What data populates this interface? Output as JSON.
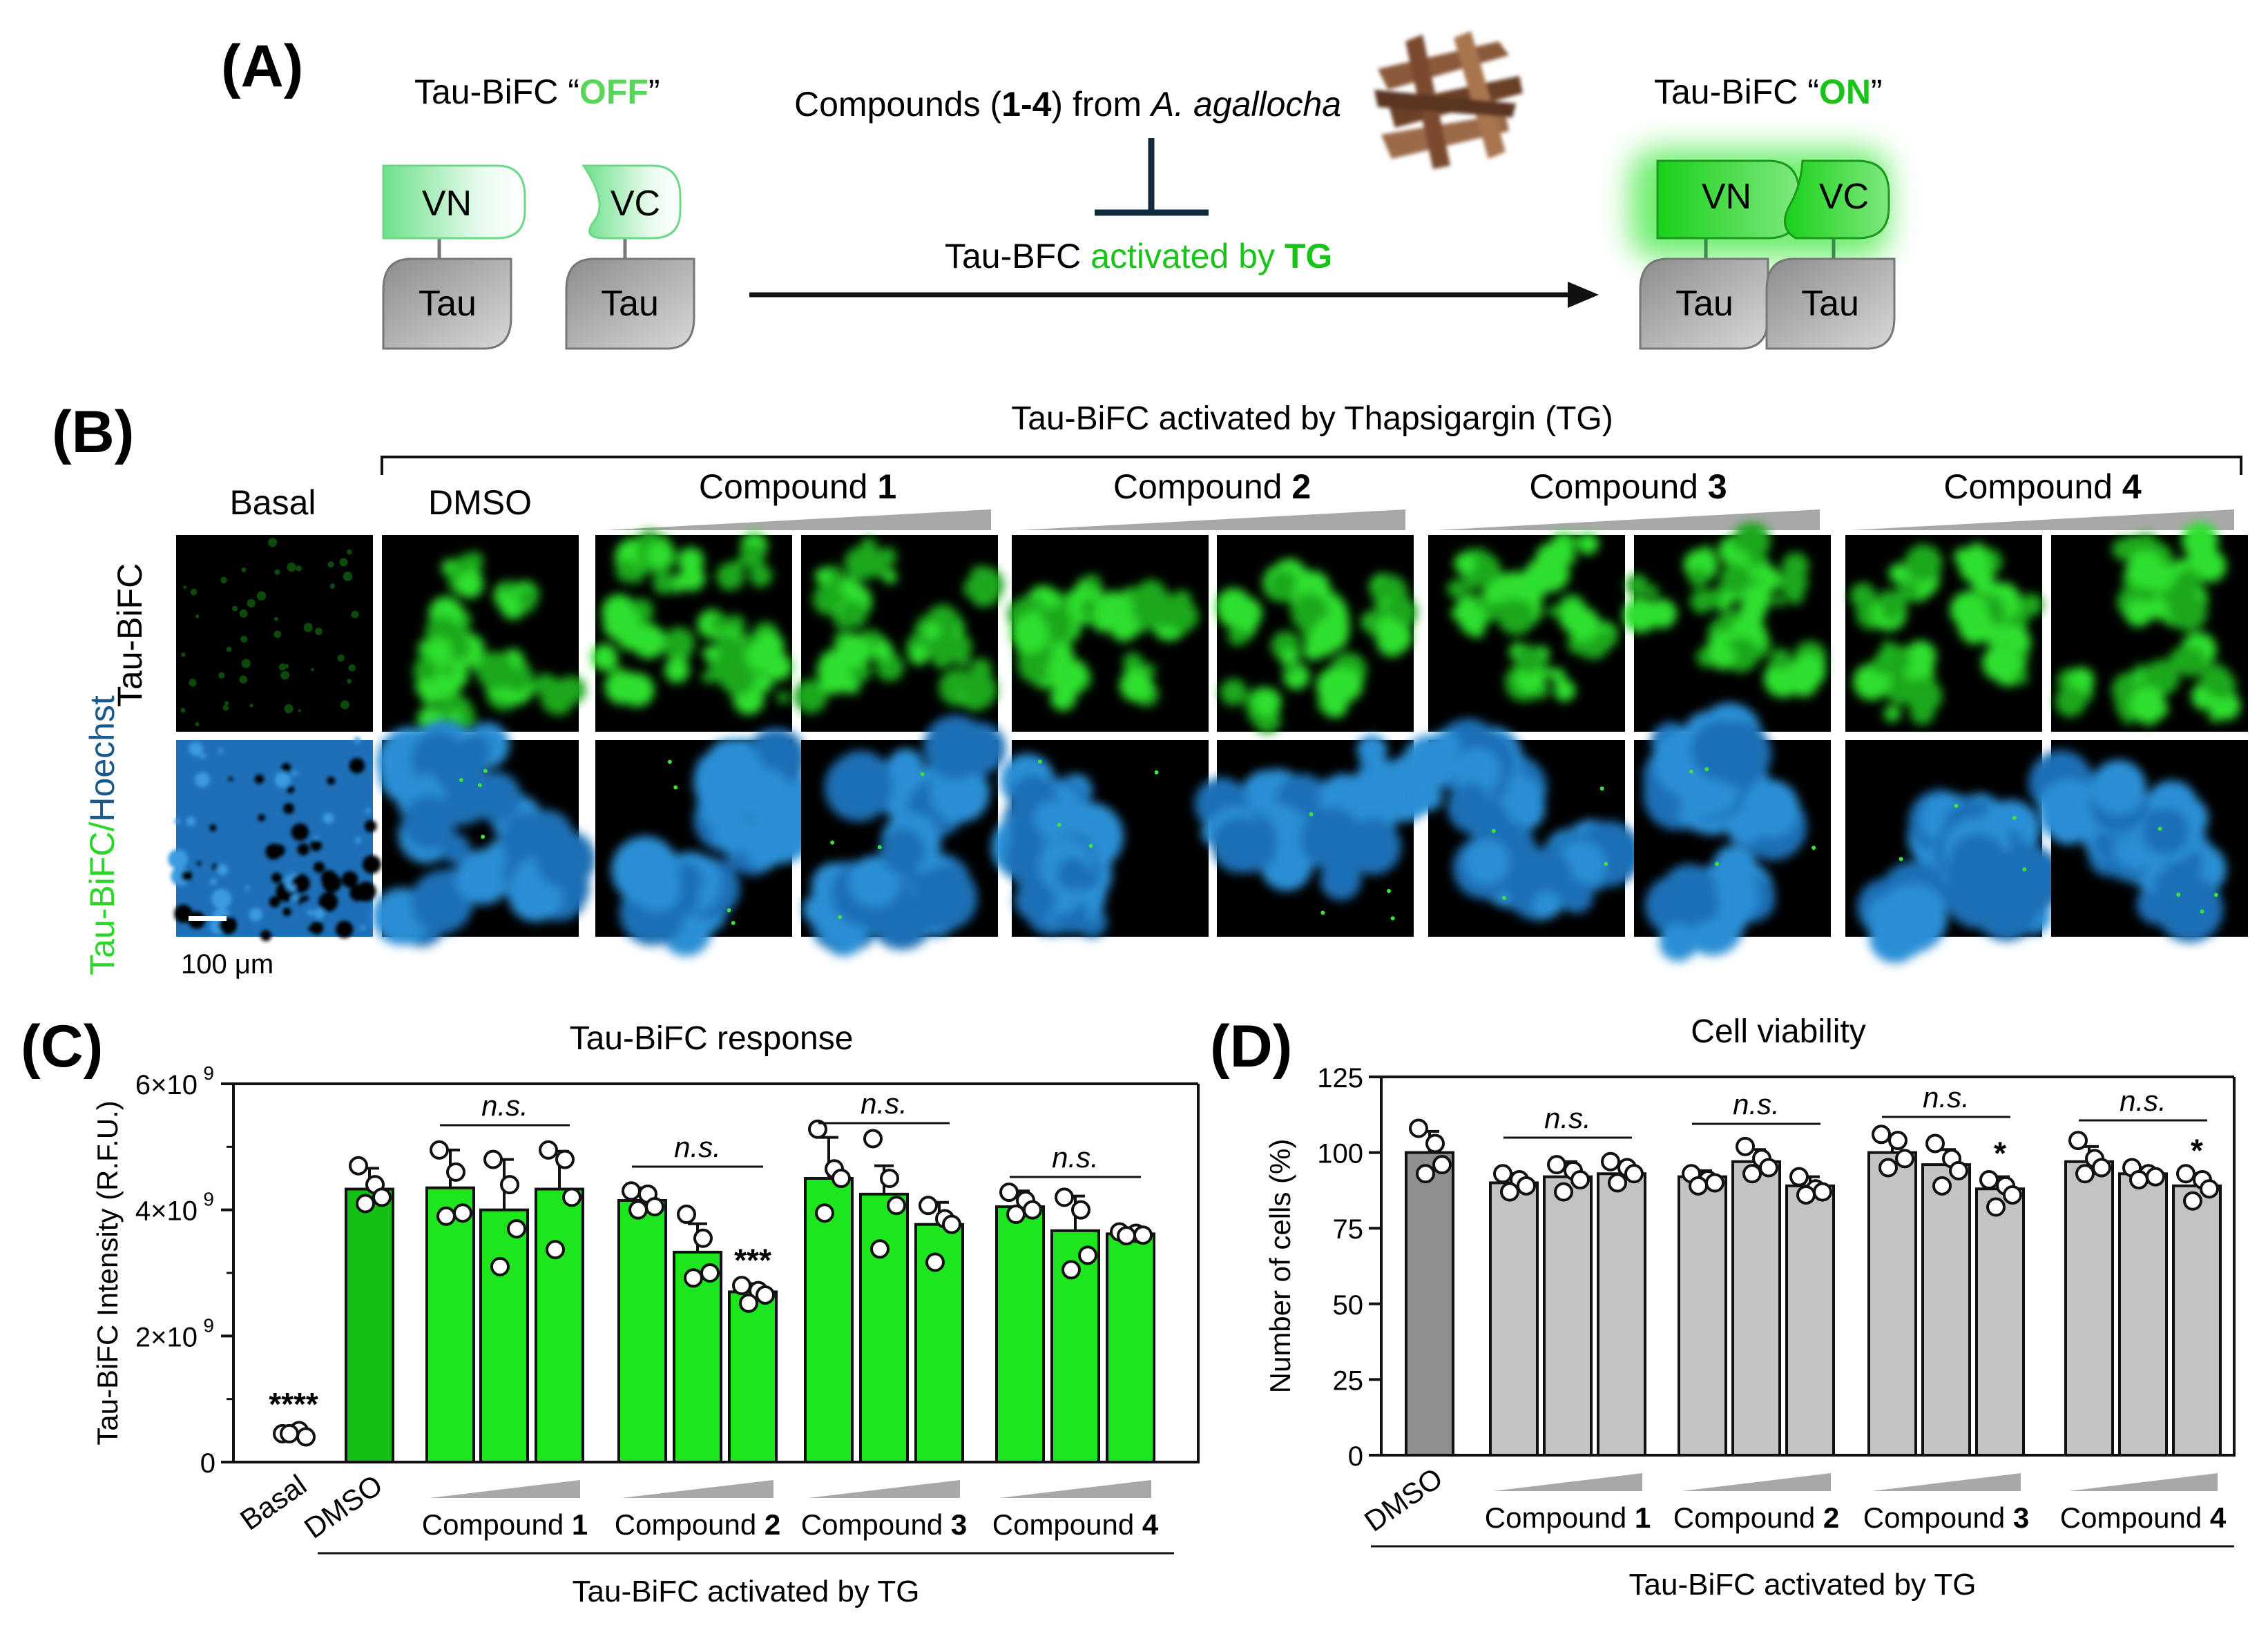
{
  "panel_a": {
    "label": "(A)",
    "off_title_prefix": "Tau-BiFC “",
    "off_word": "OFF",
    "off_title_suffix": "”",
    "on_title_prefix": "Tau-BiFC “",
    "on_word": "ON",
    "on_title_suffix": "”",
    "vn": "VN",
    "vc": "VC",
    "tau": "Tau",
    "compounds_prefix": "Compounds (",
    "compounds_bold": "1-4",
    "compounds_middle": ") from ",
    "compounds_species": "A. agallocha",
    "bfc_prefix": "Tau-BFC ",
    "bfc_green": "activated by ",
    "bfc_tg": "TG",
    "colors": {
      "green_text": "#5bd45b",
      "green_on": "#19c319",
      "arrow": "#111111",
      "inhibit": "#0f2a3a"
    }
  },
  "panel_b": {
    "label": "(B)",
    "header": "Tau-BiFC activated by Thapsigargin (TG)",
    "basal": "Basal",
    "dmso": "DMSO",
    "compound_prefix": "Compound ",
    "compounds": [
      "1",
      "2",
      "3",
      "4"
    ],
    "row_top": "Tau-BiFC",
    "row_bottom_green": "Tau-BiFC/",
    "row_bottom_blue": "Hoechst",
    "scale_bar": "100 μm",
    "colors": {
      "green": "#2bd62b",
      "blue": "#2a8fd6"
    }
  },
  "panel_c": {
    "label": "(C)",
    "title": "Tau-BiFC response",
    "footer": "Tau-BiFC activated by TG",
    "ns": "n.s.",
    "compound_prefix": "Compound ",
    "color": "#1ee61e",
    "dmso_color": "#15c015"
  },
  "panel_d": {
    "label": "(D)",
    "title": "Cell viability",
    "footer": "Tau-BiFC activated by TG",
    "ns": "n.s.",
    "compound_prefix": "Compound ",
    "color": "#c3c3c3",
    "dmso_color": "#8f8f8f"
  },
  "chart_data": [
    {
      "type": "bar",
      "title": "Tau-BiFC response",
      "ylabel": "Tau-BiFC Intensity (R.F.U.)",
      "xlabel": "Tau-BiFC activated by TG",
      "ylim": [
        0,
        6000000000
      ],
      "yticks": [
        "0",
        "2×10",
        "4×10",
        "6×10"
      ],
      "ytick_exp": "9",
      "categories": [
        "Basal",
        "DMSO",
        "Compound 1",
        "Compound 1",
        "Compound 1",
        "Compound 2",
        "Compound 2",
        "Compound 2",
        "Compound 3",
        "Compound 3",
        "Compound 3",
        "Compound 4",
        "Compound 4",
        "Compound 4"
      ],
      "group_labels": [
        "Compound 1",
        "Compound 2",
        "Compound 3",
        "Compound 4"
      ],
      "x_tick_labels": [
        "Basal",
        "DMSO"
      ],
      "values": [
        450000000,
        4330000000,
        4350000000,
        4000000000,
        4330000000,
        4150000000,
        3330000000,
        2700000000,
        4500000000,
        4250000000,
        3770000000,
        4050000000,
        3670000000,
        3620000000
      ],
      "errors": [
        100000000,
        330000000,
        600000000,
        800000000,
        600000000,
        200000000,
        450000000,
        130000000,
        650000000,
        450000000,
        350000000,
        250000000,
        550000000,
        60000000
      ],
      "points": [
        [
          450000000,
          500000000,
          400000000,
          450000000
        ],
        [
          4700000000,
          4400000000,
          4200000000,
          4100000000
        ],
        [
          4950000000,
          4600000000,
          3950000000,
          3900000000
        ],
        [
          4800000000,
          4400000000,
          3700000000,
          3100000000
        ],
        [
          4950000000,
          4800000000,
          4200000000,
          3370000000
        ],
        [
          4300000000,
          4250000000,
          4050000000,
          4000000000
        ],
        [
          3930000000,
          3550000000,
          3000000000,
          2920000000
        ],
        [
          2800000000,
          2720000000,
          2650000000,
          2520000000
        ],
        [
          5280000000,
          4650000000,
          4500000000,
          3950000000
        ],
        [
          5130000000,
          4500000000,
          4070000000,
          3380000000
        ],
        [
          4070000000,
          3860000000,
          3770000000,
          3170000000
        ],
        [
          4280000000,
          4150000000,
          4000000000,
          3930000000
        ],
        [
          4200000000,
          4000000000,
          3280000000,
          3050000000
        ],
        [
          3650000000,
          3630000000,
          3600000000,
          3590000000
        ]
      ],
      "significance": [
        "****",
        "",
        "",
        "",
        "",
        "",
        "",
        "***",
        "",
        "",
        "",
        "",
        "",
        ""
      ],
      "ns_groups": [
        "n.s.",
        "n.s.",
        "n.s.",
        "n.s."
      ]
    },
    {
      "type": "bar",
      "title": "Cell viability",
      "ylabel": "Number of cells (%)",
      "xlabel": "Tau-BiFC activated by TG",
      "ylim": [
        0,
        125
      ],
      "yticks": [
        "0",
        "25",
        "50",
        "75",
        "100",
        "125"
      ],
      "categories": [
        "DMSO",
        "Compound 1",
        "Compound 1",
        "Compound 1",
        "Compound 2",
        "Compound 2",
        "Compound 2",
        "Compound 3",
        "Compound 3",
        "Compound 3",
        "Compound 4",
        "Compound 4",
        "Compound 4"
      ],
      "group_labels": [
        "Compound 1",
        "Compound 2",
        "Compound 3",
        "Compound 4"
      ],
      "x_tick_labels": [
        "DMSO"
      ],
      "values": [
        100,
        90,
        92,
        93,
        92,
        97,
        89,
        100,
        96,
        88,
        97,
        93,
        89
      ],
      "errors": [
        7,
        3,
        5,
        4,
        2,
        4,
        3,
        5,
        5,
        4,
        5,
        2,
        4
      ],
      "points": [
        [
          108,
          103,
          96,
          93
        ],
        [
          93,
          91,
          89,
          87
        ],
        [
          96,
          94,
          91,
          87
        ],
        [
          97,
          95,
          93,
          90
        ],
        [
          93,
          91,
          90,
          89
        ],
        [
          102,
          98,
          95,
          93
        ],
        [
          92,
          88,
          87,
          86
        ],
        [
          106,
          104,
          98,
          95
        ],
        [
          103,
          98,
          94,
          89
        ],
        [
          91,
          89,
          86,
          82
        ],
        [
          104,
          98,
          95,
          93
        ],
        [
          95,
          93,
          92,
          91
        ],
        [
          93,
          91,
          88,
          84
        ]
      ],
      "significance": [
        "",
        "",
        "",
        "",
        "",
        "",
        "",
        "",
        "",
        "*",
        "",
        "",
        "*"
      ],
      "ns_groups": [
        "n.s.",
        "n.s.",
        "n.s.",
        "n.s."
      ]
    }
  ]
}
